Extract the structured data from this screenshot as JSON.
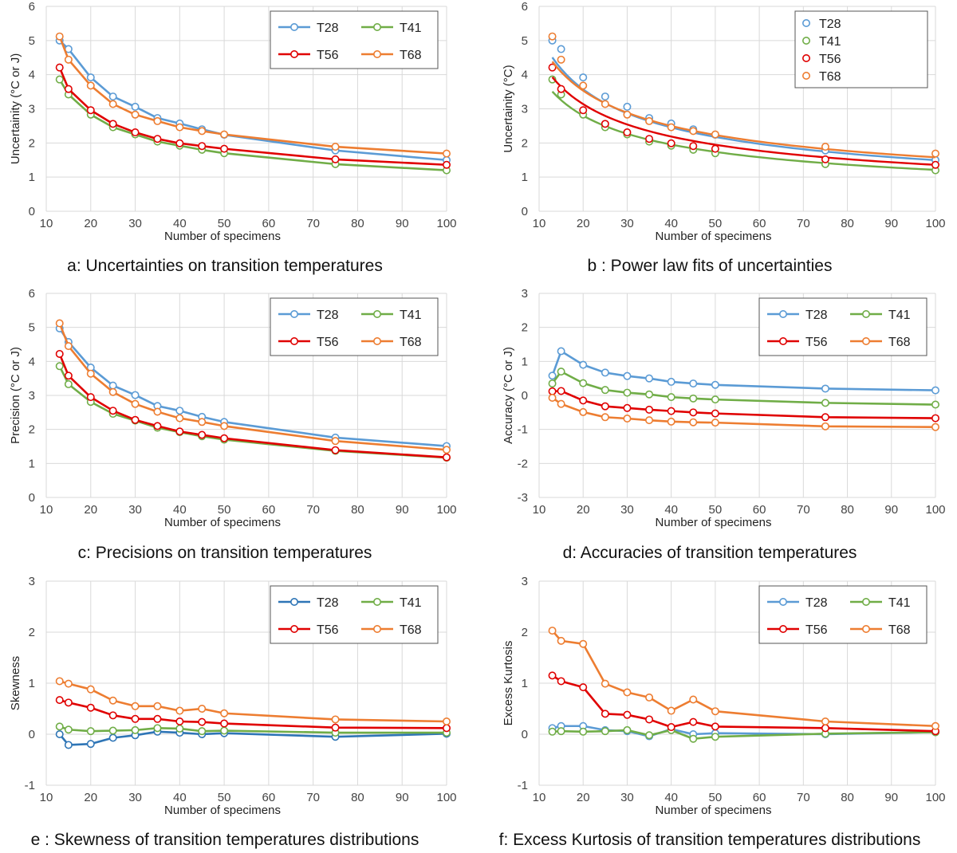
{
  "colors": {
    "T28": "#5b9bd5",
    "T41": "#70ad47",
    "T56": "#e00000",
    "T68": "#ed7d31",
    "grid": "#d9d9d9",
    "blue_dark": "#2e75b6"
  },
  "chart_data": [
    {
      "id": "a",
      "type": "line",
      "caption": "a: Uncertainties on transition temperatures",
      "xlabel": "Number of specimens",
      "ylabel": "Uncertainity  (°C or J)",
      "xlim": [
        10,
        100
      ],
      "ylim": [
        0,
        6
      ],
      "xticks": [
        10,
        20,
        30,
        40,
        50,
        60,
        70,
        80,
        90,
        100
      ],
      "yticks": [
        0,
        1,
        2,
        3,
        4,
        5,
        6
      ],
      "legend": "top-right",
      "legend_layout": "2col",
      "x": [
        13,
        15,
        20,
        25,
        30,
        35,
        40,
        45,
        50,
        75,
        100
      ],
      "series": [
        {
          "name": "T28",
          "values": [
            5.0,
            4.75,
            3.92,
            3.36,
            3.06,
            2.73,
            2.57,
            2.4,
            2.24,
            1.78,
            1.5
          ]
        },
        {
          "name": "T41",
          "values": [
            3.86,
            3.42,
            2.83,
            2.46,
            2.25,
            2.04,
            1.92,
            1.8,
            1.7,
            1.38,
            1.2
          ]
        },
        {
          "name": "T56",
          "values": [
            4.21,
            3.58,
            2.96,
            2.56,
            2.31,
            2.12,
            1.99,
            1.91,
            1.83,
            1.52,
            1.36
          ]
        },
        {
          "name": "T68",
          "values": [
            5.12,
            4.44,
            3.68,
            3.14,
            2.83,
            2.64,
            2.46,
            2.35,
            2.25,
            1.89,
            1.69
          ]
        }
      ]
    },
    {
      "id": "b",
      "type": "scatter",
      "caption": "b : Power law fits of uncertainties",
      "xlabel": "Number of specimens",
      "ylabel": "Uncertainity  (°C)",
      "xlim": [
        10,
        100
      ],
      "ylim": [
        0,
        6
      ],
      "xticks": [
        10,
        20,
        30,
        40,
        50,
        60,
        70,
        80,
        90,
        100
      ],
      "yticks": [
        0,
        1,
        2,
        3,
        4,
        5,
        6
      ],
      "legend": "top-right",
      "legend_layout": "1col",
      "x": [
        13,
        15,
        20,
        25,
        30,
        35,
        40,
        45,
        50,
        75,
        100
      ],
      "fit": "power-law",
      "series": [
        {
          "name": "T28",
          "values": [
            5.0,
            4.75,
            3.92,
            3.36,
            3.06,
            2.73,
            2.57,
            2.4,
            2.24,
            1.78,
            1.5
          ],
          "fit_a": 18.0,
          "fit_b": -0.54
        },
        {
          "name": "T41",
          "values": [
            3.86,
            3.42,
            2.83,
            2.46,
            2.25,
            2.04,
            1.92,
            1.8,
            1.7,
            1.38,
            1.2
          ],
          "fit_a": 13.3,
          "fit_b": -0.52
        },
        {
          "name": "T56",
          "values": [
            4.21,
            3.58,
            2.96,
            2.56,
            2.31,
            2.12,
            1.99,
            1.91,
            1.83,
            1.52,
            1.36
          ],
          "fit_a": 14.9,
          "fit_b": -0.52
        },
        {
          "name": "T68",
          "values": [
            5.12,
            4.44,
            3.68,
            3.14,
            2.83,
            2.64,
            2.46,
            2.35,
            2.25,
            1.89,
            1.69
          ],
          "fit_a": 15.8,
          "fit_b": -0.5
        }
      ]
    },
    {
      "id": "c",
      "type": "line",
      "caption": "c: Precisions on transition temperatures",
      "xlabel": "Number of specimens",
      "ylabel": "Precision (°C or J)",
      "xlim": [
        10,
        100
      ],
      "ylim": [
        0,
        6
      ],
      "xticks": [
        10,
        20,
        30,
        40,
        50,
        60,
        70,
        80,
        90,
        100
      ],
      "yticks": [
        0,
        1,
        2,
        3,
        4,
        5,
        6
      ],
      "legend": "top-right",
      "legend_layout": "2col",
      "x": [
        13,
        15,
        20,
        25,
        30,
        35,
        40,
        45,
        50,
        75,
        100
      ],
      "series": [
        {
          "name": "T28",
          "values": [
            4.97,
            4.57,
            3.82,
            3.29,
            3.01,
            2.69,
            2.55,
            2.37,
            2.22,
            1.76,
            1.51
          ]
        },
        {
          "name": "T41",
          "values": [
            3.86,
            3.33,
            2.81,
            2.46,
            2.26,
            2.05,
            1.92,
            1.8,
            1.7,
            1.37,
            1.17
          ]
        },
        {
          "name": "T56",
          "values": [
            4.22,
            3.58,
            2.95,
            2.55,
            2.28,
            2.1,
            1.94,
            1.84,
            1.74,
            1.39,
            1.18
          ]
        },
        {
          "name": "T68",
          "values": [
            5.12,
            4.45,
            3.64,
            3.1,
            2.75,
            2.52,
            2.33,
            2.22,
            2.1,
            1.66,
            1.4
          ]
        }
      ]
    },
    {
      "id": "d",
      "type": "line",
      "caption": "d: Accuracies of transition temperatures",
      "xlabel": "Number of specimens",
      "ylabel": "Accuracy (°C or J)",
      "xlim": [
        10,
        100
      ],
      "ylim": [
        -3,
        3
      ],
      "xticks": [
        10,
        20,
        30,
        40,
        50,
        60,
        70,
        80,
        90,
        100
      ],
      "yticks": [
        -3,
        -2,
        -1,
        0,
        1,
        2,
        3
      ],
      "legend": "top-right",
      "legend_layout": "2col",
      "x": [
        13,
        15,
        20,
        25,
        30,
        35,
        40,
        45,
        50,
        75,
        100
      ],
      "series": [
        {
          "name": "T28",
          "values": [
            0.58,
            1.3,
            0.9,
            0.67,
            0.57,
            0.5,
            0.4,
            0.35,
            0.31,
            0.2,
            0.15
          ]
        },
        {
          "name": "T41",
          "values": [
            0.35,
            0.7,
            0.36,
            0.16,
            0.08,
            0.03,
            -0.05,
            -0.09,
            -0.12,
            -0.22,
            -0.27
          ]
        },
        {
          "name": "T56",
          "values": [
            0.12,
            0.13,
            -0.15,
            -0.32,
            -0.37,
            -0.42,
            -0.46,
            -0.5,
            -0.53,
            -0.64,
            -0.67
          ]
        },
        {
          "name": "T68",
          "values": [
            -0.07,
            -0.25,
            -0.49,
            -0.64,
            -0.68,
            -0.73,
            -0.77,
            -0.79,
            -0.8,
            -0.91,
            -0.93
          ]
        }
      ]
    },
    {
      "id": "e",
      "type": "line",
      "caption": "e : Skewness of transition temperatures distributions",
      "xlabel": "Number of specimens",
      "ylabel": "Skewness",
      "xlim": [
        10,
        100
      ],
      "ylim": [
        -1,
        3
      ],
      "xticks": [
        10,
        20,
        30,
        40,
        50,
        60,
        70,
        80,
        90,
        100
      ],
      "yticks": [
        -1,
        0,
        1,
        2,
        3
      ],
      "legend": "top-right",
      "legend_layout": "2col",
      "x": [
        13,
        15,
        20,
        25,
        30,
        35,
        40,
        45,
        50,
        75,
        100
      ],
      "series": [
        {
          "name": "T28",
          "values": [
            0.0,
            -0.21,
            -0.19,
            -0.07,
            -0.02,
            0.05,
            0.03,
            0.0,
            0.02,
            -0.05,
            0.01
          ]
        },
        {
          "name": "T41",
          "values": [
            0.15,
            0.09,
            0.06,
            0.07,
            0.08,
            0.12,
            0.11,
            0.06,
            0.07,
            0.03,
            0.03
          ]
        },
        {
          "name": "T56",
          "values": [
            0.67,
            0.62,
            0.52,
            0.37,
            0.3,
            0.3,
            0.25,
            0.24,
            0.21,
            0.13,
            0.12
          ]
        },
        {
          "name": "T68",
          "values": [
            1.04,
            0.99,
            0.88,
            0.66,
            0.55,
            0.55,
            0.46,
            0.5,
            0.41,
            0.29,
            0.25
          ]
        }
      ]
    },
    {
      "id": "f",
      "type": "line",
      "caption": "f: Excess Kurtosis of transition temperatures distributions",
      "xlabel": "Number of specimens",
      "ylabel": "Excess Kurtosis",
      "xlim": [
        10,
        100
      ],
      "ylim": [
        -1,
        3
      ],
      "xticks": [
        10,
        20,
        30,
        40,
        50,
        60,
        70,
        80,
        90,
        100
      ],
      "yticks": [
        -1,
        0,
        1,
        2,
        3
      ],
      "legend": "top-right",
      "legend_layout": "2col",
      "x": [
        13,
        15,
        20,
        25,
        30,
        35,
        40,
        45,
        50,
        75,
        100
      ],
      "series": [
        {
          "name": "T28",
          "values": [
            0.12,
            0.16,
            0.16,
            0.08,
            0.06,
            -0.04,
            0.1,
            0.0,
            0.02,
            0.0,
            0.04
          ]
        },
        {
          "name": "T41",
          "values": [
            0.05,
            0.06,
            0.05,
            0.06,
            0.08,
            -0.02,
            0.08,
            -0.09,
            -0.05,
            0.01,
            0.04
          ]
        },
        {
          "name": "T56",
          "values": [
            1.15,
            1.04,
            0.92,
            0.4,
            0.38,
            0.29,
            0.14,
            0.24,
            0.15,
            0.12,
            0.06
          ]
        },
        {
          "name": "T68",
          "values": [
            2.03,
            1.83,
            1.77,
            0.99,
            0.82,
            0.72,
            0.46,
            0.68,
            0.45,
            0.25,
            0.16
          ]
        }
      ]
    }
  ]
}
